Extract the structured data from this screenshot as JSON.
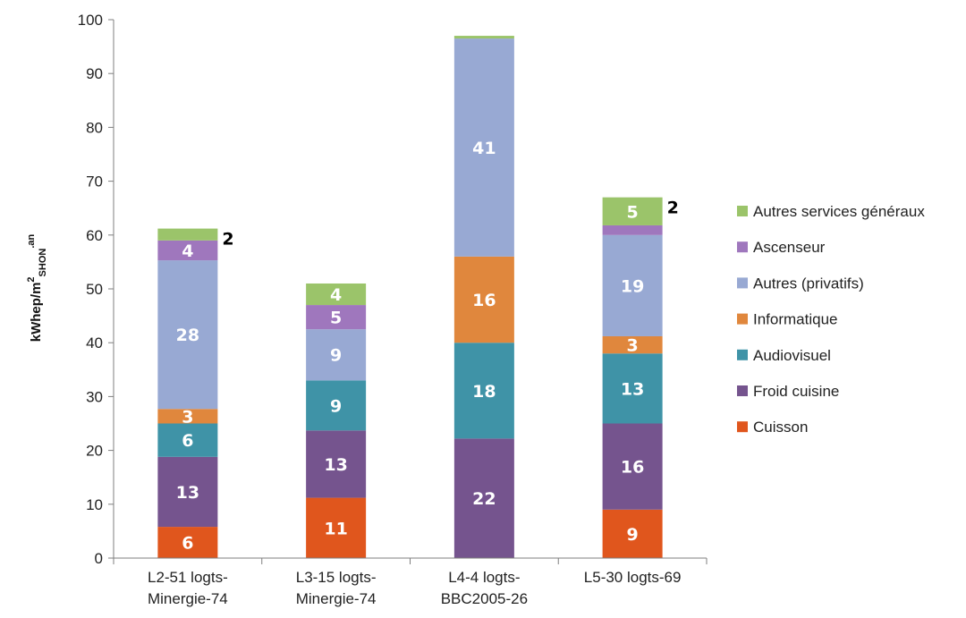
{
  "chart_data": {
    "type": "bar",
    "stacked": true,
    "ylabel": {
      "main": "kWhep/m",
      "sup1": "2",
      "sub": "SHON",
      "sup2": ".an"
    },
    "ylim": [
      0,
      100
    ],
    "yticks": [
      "0",
      "10",
      "20",
      "30",
      "40",
      "50",
      "60",
      "70",
      "80",
      "90",
      "100"
    ],
    "grid": false,
    "legend_position": "right",
    "categories": [
      [
        "L2-51 logts-",
        "Minergie-74"
      ],
      [
        "L3-15 logts-",
        "Minergie-74"
      ],
      [
        "L4-4 logts-",
        "BBC2005-26"
      ],
      [
        "L5-30 logts-69"
      ]
    ],
    "series": [
      {
        "name": "Cuisson",
        "color": "#e0561d",
        "values": [
          5.8,
          11.2,
          0,
          9
        ],
        "labels": [
          "6",
          "11",
          "",
          "9"
        ]
      },
      {
        "name": "Froid cuisine",
        "color": "#75548e",
        "values": [
          13,
          12.5,
          22.2,
          16
        ],
        "labels": [
          "13",
          "13",
          "22",
          "16"
        ]
      },
      {
        "name": "Audiovisuel",
        "color": "#3f93a7",
        "values": [
          6.2,
          9.3,
          17.8,
          13
        ],
        "labels": [
          "6",
          "9",
          "18",
          "13"
        ]
      },
      {
        "name": "Informatique",
        "color": "#e0873d",
        "values": [
          2.7,
          0,
          16,
          3.2
        ],
        "labels": [
          "3",
          "",
          "16",
          "3"
        ]
      },
      {
        "name": "Autres (privatifs)",
        "color": "#98a9d3",
        "values": [
          27.6,
          9.5,
          40.5,
          18.8
        ],
        "labels": [
          "28",
          "9",
          "41",
          "19"
        ]
      },
      {
        "name": "Ascenseur",
        "color": "#9f77bd",
        "values": [
          3.7,
          4.5,
          0,
          1.8
        ],
        "labels": [
          "4",
          "5",
          "",
          ""
        ]
      },
      {
        "name": "Autres services généraux",
        "color": "#9bc46a",
        "values": [
          2.2,
          4,
          0.5,
          5.2
        ],
        "labels": [
          "",
          "4",
          "",
          "5"
        ]
      }
    ],
    "outside_labels": [
      "2",
      "",
      "",
      "2"
    ]
  }
}
